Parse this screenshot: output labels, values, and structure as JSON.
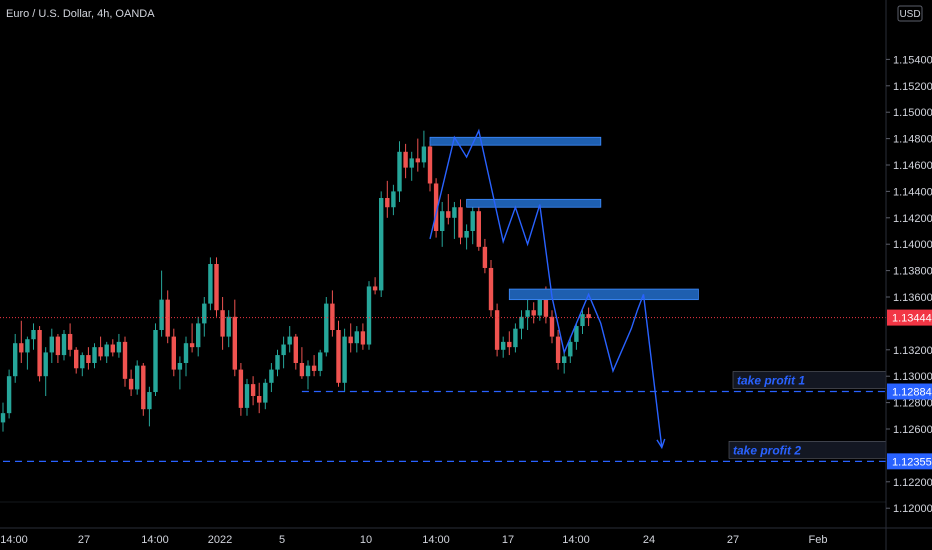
{
  "title": "Euro / U.S. Dollar, 4h, OANDA",
  "currency_button": "USD",
  "colors": {
    "up": "#26a69a",
    "down": "#ef5350",
    "zone": "#1e5fb0",
    "zone_border": "#3d8bff",
    "drawing": "#2962ff",
    "last_price": "#f23645",
    "bg": "#000000",
    "axis_text": "#d1d4dc"
  },
  "chart_data": {
    "type": "candlestick",
    "symbol": "EURUSD",
    "interval": "4h",
    "ylim": [
      1.1185,
      1.1585
    ],
    "y_ticks": [
      "1.15400",
      "1.15200",
      "1.15000",
      "1.14800",
      "1.14600",
      "1.14400",
      "1.14200",
      "1.14000",
      "1.13800",
      "1.13600",
      "1.13200",
      "1.13000",
      "1.12800",
      "1.12600",
      "1.12200",
      "1.12000"
    ],
    "x_ticks": [
      "14:00",
      "27",
      "14:00",
      "2022",
      "5",
      "10",
      "14:00",
      "17",
      "14:00",
      "24",
      "27",
      "Feb"
    ],
    "last_price": "1.13444",
    "price_labels": [
      {
        "label": "1.12884",
        "value": 1.12884
      },
      {
        "label": "1.12355",
        "value": 1.12355
      }
    ],
    "candles": [
      [
        1.1265,
        1.128,
        1.1258,
        1.1272
      ],
      [
        1.1272,
        1.1305,
        1.1268,
        1.13
      ],
      [
        1.13,
        1.1332,
        1.1295,
        1.1325
      ],
      [
        1.1325,
        1.1342,
        1.131,
        1.1318
      ],
      [
        1.1318,
        1.133,
        1.1305,
        1.1328
      ],
      [
        1.1328,
        1.134,
        1.132,
        1.1335
      ],
      [
        1.1335,
        1.1338,
        1.1296,
        1.13
      ],
      [
        1.13,
        1.1322,
        1.1285,
        1.1318
      ],
      [
        1.1318,
        1.1336,
        1.131,
        1.133
      ],
      [
        1.133,
        1.1332,
        1.131,
        1.1316
      ],
      [
        1.1316,
        1.1335,
        1.1312,
        1.1332
      ],
      [
        1.1332,
        1.134,
        1.1315,
        1.132
      ],
      [
        1.132,
        1.1322,
        1.1302,
        1.1306
      ],
      [
        1.1306,
        1.1318,
        1.13,
        1.1316
      ],
      [
        1.1316,
        1.1322,
        1.1305,
        1.131
      ],
      [
        1.131,
        1.1325,
        1.1306,
        1.1322
      ],
      [
        1.1322,
        1.133,
        1.1312,
        1.1315
      ],
      [
        1.1315,
        1.1326,
        1.131,
        1.1324
      ],
      [
        1.1324,
        1.1328,
        1.1315,
        1.1318
      ],
      [
        1.1318,
        1.1332,
        1.1314,
        1.1326
      ],
      [
        1.1326,
        1.133,
        1.1292,
        1.1298
      ],
      [
        1.1298,
        1.1305,
        1.1285,
        1.129
      ],
      [
        1.129,
        1.1312,
        1.1286,
        1.1308
      ],
      [
        1.1308,
        1.131,
        1.127,
        1.1275
      ],
      [
        1.1275,
        1.1292,
        1.1262,
        1.1288
      ],
      [
        1.1288,
        1.134,
        1.1285,
        1.1335
      ],
      [
        1.1335,
        1.138,
        1.133,
        1.1358
      ],
      [
        1.1358,
        1.1365,
        1.1325,
        1.133
      ],
      [
        1.133,
        1.1336,
        1.13,
        1.1305
      ],
      [
        1.1305,
        1.1315,
        1.129,
        1.131
      ],
      [
        1.131,
        1.133,
        1.13,
        1.1325
      ],
      [
        1.1325,
        1.134,
        1.1318,
        1.1322
      ],
      [
        1.1322,
        1.1345,
        1.1315,
        1.134
      ],
      [
        1.134,
        1.136,
        1.133,
        1.1355
      ],
      [
        1.1355,
        1.139,
        1.135,
        1.1385
      ],
      [
        1.1385,
        1.139,
        1.1345,
        1.135
      ],
      [
        1.135,
        1.136,
        1.132,
        1.133
      ],
      [
        1.133,
        1.135,
        1.1322,
        1.1345
      ],
      [
        1.1345,
        1.1358,
        1.13,
        1.1305
      ],
      [
        1.1305,
        1.131,
        1.127,
        1.1276
      ],
      [
        1.1276,
        1.1298,
        1.127,
        1.1294
      ],
      [
        1.1294,
        1.13,
        1.1278,
        1.1285
      ],
      [
        1.1285,
        1.1295,
        1.1272,
        1.128
      ],
      [
        1.128,
        1.1298,
        1.1275,
        1.1295
      ],
      [
        1.1295,
        1.131,
        1.1288,
        1.1305
      ],
      [
        1.1305,
        1.132,
        1.13,
        1.1316
      ],
      [
        1.1316,
        1.133,
        1.1306,
        1.1324
      ],
      [
        1.1324,
        1.1338,
        1.1318,
        1.133
      ],
      [
        1.133,
        1.1332,
        1.1305,
        1.131
      ],
      [
        1.131,
        1.1322,
        1.1298,
        1.13
      ],
      [
        1.13,
        1.1312,
        1.129,
        1.1308
      ],
      [
        1.1308,
        1.1316,
        1.13,
        1.1304
      ],
      [
        1.1304,
        1.132,
        1.13,
        1.1318
      ],
      [
        1.1318,
        1.136,
        1.1315,
        1.1355
      ],
      [
        1.1355,
        1.1365,
        1.133,
        1.1335
      ],
      [
        1.1335,
        1.1342,
        1.1292,
        1.1295
      ],
      [
        1.1295,
        1.1336,
        1.1288,
        1.133
      ],
      [
        1.133,
        1.134,
        1.1318,
        1.1325
      ],
      [
        1.1325,
        1.1338,
        1.1318,
        1.1334
      ],
      [
        1.1334,
        1.134,
        1.132,
        1.1324
      ],
      [
        1.1324,
        1.1372,
        1.132,
        1.1368
      ],
      [
        1.1368,
        1.1375,
        1.1362,
        1.1365
      ],
      [
        1.1365,
        1.144,
        1.136,
        1.1435
      ],
      [
        1.1435,
        1.1448,
        1.142,
        1.1428
      ],
      [
        1.1428,
        1.1445,
        1.1422,
        1.144
      ],
      [
        1.144,
        1.1478,
        1.1432,
        1.147
      ],
      [
        1.147,
        1.1476,
        1.145,
        1.1458
      ],
      [
        1.1458,
        1.147,
        1.1448,
        1.1465
      ],
      [
        1.1465,
        1.148,
        1.1455,
        1.1462
      ],
      [
        1.1462,
        1.1486,
        1.1458,
        1.1474
      ],
      [
        1.1474,
        1.1478,
        1.144,
        1.1446
      ],
      [
        1.1446,
        1.145,
        1.1405,
        1.141
      ],
      [
        1.141,
        1.1432,
        1.1398,
        1.1425
      ],
      [
        1.1425,
        1.1438,
        1.1415,
        1.142
      ],
      [
        1.142,
        1.1432,
        1.1404,
        1.1428
      ],
      [
        1.1428,
        1.1434,
        1.14,
        1.1405
      ],
      [
        1.1405,
        1.1415,
        1.1396,
        1.141
      ],
      [
        1.141,
        1.143,
        1.14,
        1.1425
      ],
      [
        1.1425,
        1.1428,
        1.1395,
        1.1398
      ],
      [
        1.1398,
        1.1404,
        1.1378,
        1.1382
      ],
      [
        1.1382,
        1.1388,
        1.1345,
        1.135
      ],
      [
        1.135,
        1.1355,
        1.1315,
        1.132
      ],
      [
        1.132,
        1.133,
        1.1314,
        1.1326
      ],
      [
        1.1326,
        1.1334,
        1.1316,
        1.1322
      ],
      [
        1.1322,
        1.134,
        1.1318,
        1.1336
      ],
      [
        1.1336,
        1.135,
        1.1328,
        1.1345
      ],
      [
        1.1345,
        1.1358,
        1.1335,
        1.135
      ],
      [
        1.135,
        1.1356,
        1.134,
        1.1346
      ],
      [
        1.1346,
        1.1364,
        1.1342,
        1.136
      ],
      [
        1.136,
        1.1368,
        1.134,
        1.1345
      ],
      [
        1.1345,
        1.135,
        1.1325,
        1.133
      ],
      [
        1.133,
        1.1335,
        1.1305,
        1.131
      ],
      [
        1.131,
        1.1318,
        1.1302,
        1.1315
      ],
      [
        1.1315,
        1.133,
        1.131,
        1.1326
      ],
      [
        1.1326,
        1.134,
        1.132,
        1.1338
      ],
      [
        1.1338,
        1.135,
        1.1332,
        1.1347
      ],
      [
        1.1347,
        1.1352,
        1.1338,
        1.1344
      ]
    ],
    "zones": [
      {
        "x0": 70,
        "x1": 98,
        "y0": 1.1475,
        "y1": 1.1481
      },
      {
        "x0": 76,
        "x1": 98,
        "y0": 1.1428,
        "y1": 1.1434
      },
      {
        "x0": 83,
        "x1": 114,
        "y0": 1.1358,
        "y1": 1.1366
      }
    ],
    "pattern_lines": [
      [
        [
          70,
          1.1404
        ],
        [
          74,
          1.1481
        ],
        [
          76,
          1.1466
        ],
        [
          78,
          1.1486
        ],
        [
          80,
          1.1444
        ],
        [
          82,
          1.1402
        ],
        [
          84,
          1.1428
        ],
        [
          86,
          1.14
        ],
        [
          88,
          1.143
        ],
        [
          90,
          1.136
        ],
        [
          92,
          1.1318
        ],
        [
          96,
          1.1362
        ],
        [
          98,
          1.134
        ],
        [
          100,
          1.1304
        ],
        [
          103,
          1.1336
        ],
        [
          104,
          1.135
        ],
        [
          105,
          1.1362
        ],
        [
          108,
          1.1246
        ]
      ]
    ],
    "take_profits": [
      {
        "label": "take profit 1",
        "price": 1.12884,
        "x_start": 49
      },
      {
        "label": "take profit 2",
        "price": 1.12355,
        "x_start": 0
      }
    ]
  }
}
